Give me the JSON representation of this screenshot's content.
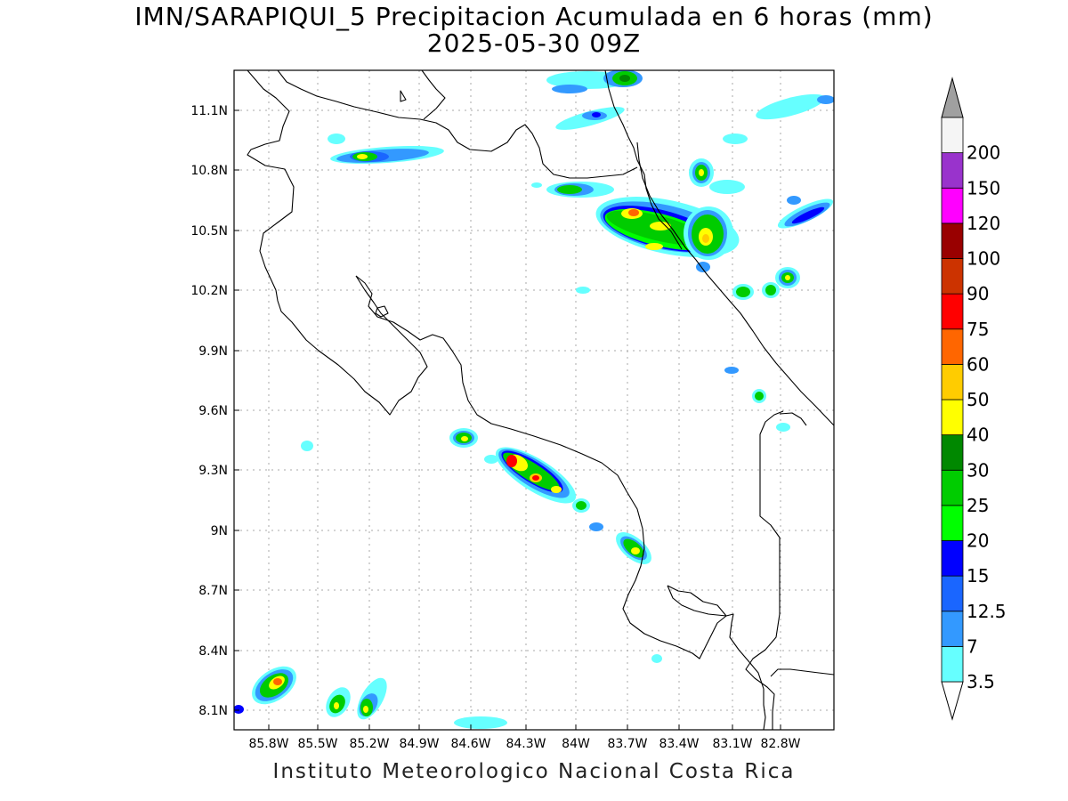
{
  "title": {
    "line1": "IMN/SARAPIQUI_5 Precipitacion Acumulada en 6 horas (mm)",
    "line2": "2025-05-30 09Z"
  },
  "footer": "Instituto Meteorologico Nacional Costa Rica",
  "axes": {
    "lat_labels": [
      "11.1N",
      "10.8N",
      "10.5N",
      "10.2N",
      "9.9N",
      "9.6N",
      "9.3N",
      "9N",
      "8.7N",
      "8.4N",
      "8.1N"
    ],
    "lon_labels": [
      "85.8W",
      "85.5W",
      "85.2W",
      "84.9W",
      "84.6W",
      "84.3W",
      "84W",
      "83.7W",
      "83.4W",
      "83.1W",
      "82.8W"
    ]
  },
  "legend": {
    "colors": [
      "#66ffff",
      "#3399ff",
      "#1a66ff",
      "#0000ff",
      "#00ff00",
      "#00cc00",
      "#008800",
      "#ffff00",
      "#ffcc00",
      "#ff6600",
      "#ff0000",
      "#cc3300",
      "#990000",
      "#ff00ff",
      "#9933cc",
      "#f5f5f5"
    ],
    "labels": [
      "3.5",
      "7",
      "12.5",
      "15",
      "20",
      "25",
      "30",
      "40",
      "50",
      "60",
      "75",
      "90",
      "100",
      "120",
      "150",
      "200"
    ]
  }
}
